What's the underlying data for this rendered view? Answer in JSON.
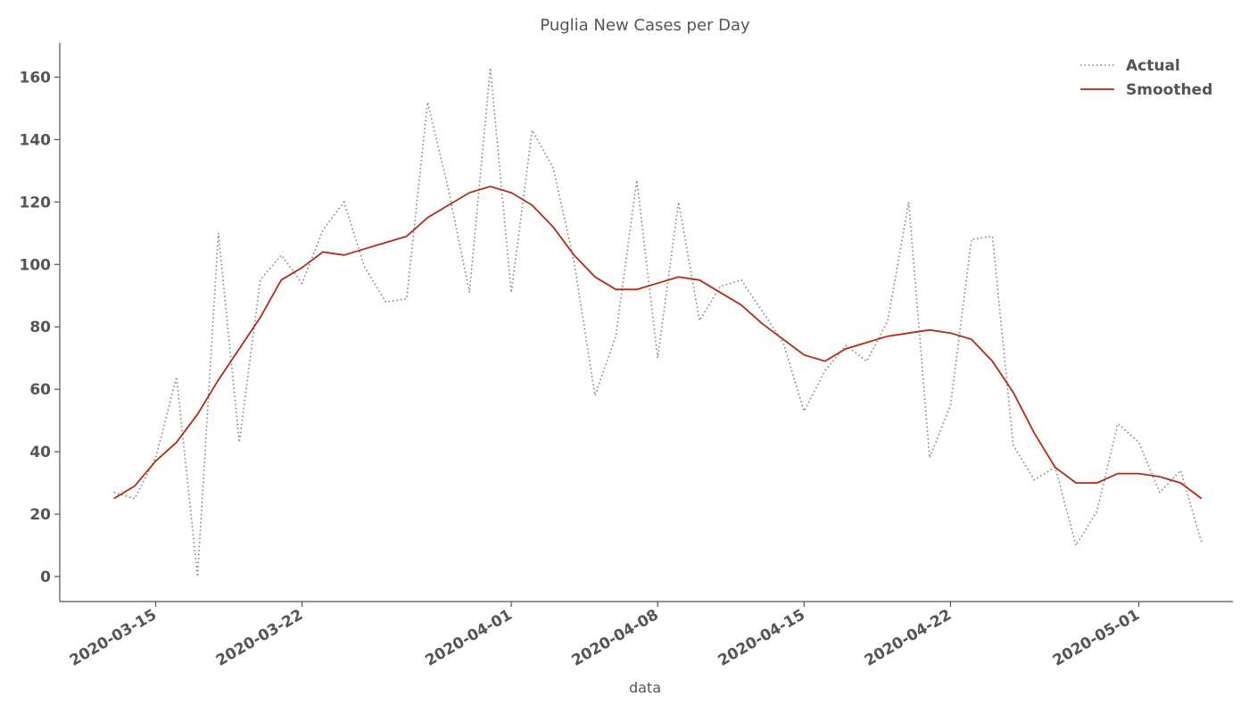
{
  "chart_data": {
    "type": "line",
    "title": "Puglia New Cases per Day",
    "xlabel": "data",
    "ylabel": "",
    "x_start": "2020-03-13",
    "x_end": "2020-05-03",
    "xlim": [
      "2020-03-10T10:00",
      "2020-05-05T12:00"
    ],
    "ylim": [
      -8,
      171
    ],
    "x_ticks": [
      "2020-03-15",
      "2020-03-22",
      "2020-04-01",
      "2020-04-08",
      "2020-04-15",
      "2020-04-22",
      "2020-05-01"
    ],
    "y_ticks": [
      0,
      20,
      40,
      60,
      80,
      100,
      120,
      140,
      160
    ],
    "legend_position": "top-right",
    "grid": false,
    "series": [
      {
        "name": "Actual",
        "style": "dotted",
        "color": "#808080",
        "values": [
          27,
          25,
          38,
          64,
          0,
          110,
          43,
          95,
          103,
          94,
          111,
          120,
          99,
          88,
          89,
          152,
          124,
          91,
          163,
          91,
          143,
          131,
          101,
          58,
          77,
          127,
          70,
          120,
          82,
          93,
          95,
          85,
          75,
          53,
          66,
          74,
          69,
          82,
          120,
          38,
          55,
          108,
          109,
          42,
          31,
          35,
          10,
          21,
          49,
          43,
          27,
          34,
          11
        ]
      },
      {
        "name": "Smoothed",
        "style": "solid",
        "color": "#b22a18",
        "values": [
          25,
          29,
          37,
          43,
          52,
          63,
          73,
          83,
          95,
          99,
          104,
          103,
          105,
          107,
          109,
          115,
          119,
          123,
          125,
          123,
          119,
          112,
          103,
          96,
          92,
          92,
          94,
          96,
          95,
          91,
          87,
          81,
          76,
          71,
          69,
          73,
          75,
          77,
          78,
          79,
          78,
          76,
          69,
          59,
          46,
          35,
          30,
          30,
          33,
          33,
          32,
          30,
          25
        ]
      }
    ]
  }
}
